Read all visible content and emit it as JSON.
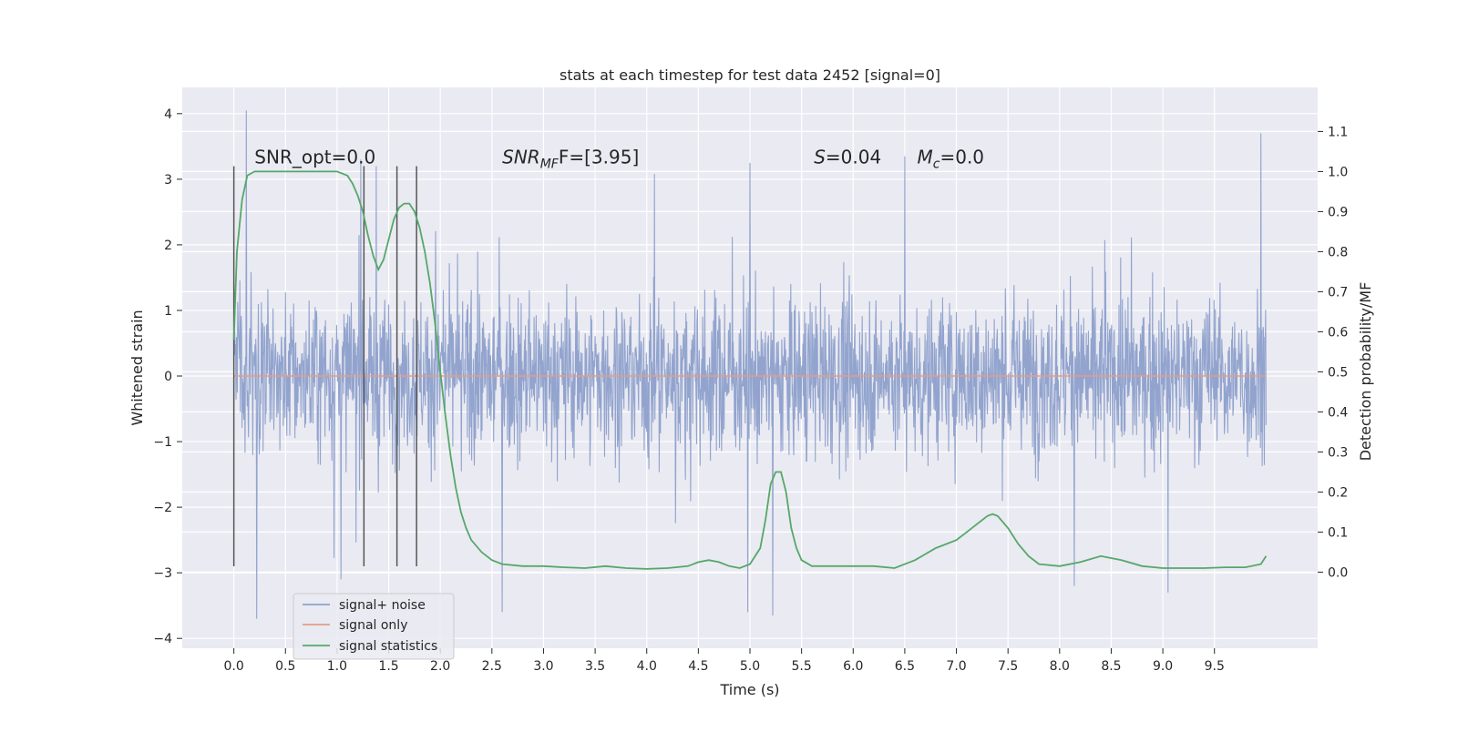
{
  "chart_data": {
    "type": "line",
    "title": "stats at each timestep for test data 2452 [signal=0]",
    "xlabel": "Time (s)",
    "ylabel": "Whitened strain",
    "y2label": "Detection probability/MF",
    "xlim": [
      -0.5,
      10.5
    ],
    "ylim": [
      -4.15,
      4.4
    ],
    "y2lim": [
      -0.19,
      1.21
    ],
    "x_ticks": [
      0.0,
      0.5,
      1.0,
      1.5,
      2.0,
      2.5,
      3.0,
      3.5,
      4.0,
      4.5,
      5.0,
      5.5,
      6.0,
      6.5,
      7.0,
      7.5,
      8.0,
      8.5,
      9.0,
      9.5
    ],
    "x_tick_labels": [
      "0.0",
      "0.5",
      "1.0",
      "1.5",
      "2.0",
      "2.5",
      "3.0",
      "3.5",
      "4.0",
      "4.5",
      "5.0",
      "5.5",
      "6.0",
      "6.5",
      "7.0",
      "7.5",
      "8.0",
      "8.5",
      "9.0",
      "9.5"
    ],
    "y_ticks": [
      -4,
      -3,
      -2,
      -1,
      0,
      1,
      2,
      3,
      4
    ],
    "y_tick_labels": [
      "−4",
      "−3",
      "−2",
      "−1",
      "0",
      "1",
      "2",
      "3",
      "4"
    ],
    "y2_ticks": [
      0.0,
      0.1,
      0.2,
      0.3,
      0.4,
      0.5,
      0.6,
      0.7,
      0.8,
      0.9,
      1.0,
      1.1
    ],
    "y2_tick_labels": [
      "0.0",
      "0.1",
      "0.2",
      "0.3",
      "0.4",
      "0.5",
      "0.6",
      "0.7",
      "0.8",
      "0.9",
      "1.0",
      "1.1"
    ],
    "grid": true,
    "legend_position": "lower-left",
    "colors": {
      "signal_noise": "#8da0cb",
      "signal_only": "#e29d85",
      "statistics": "#55a868",
      "vlines": "#555555",
      "plot_bg": "#eaeaf2",
      "grid": "#ffffff"
    },
    "series": [
      {
        "name": "signal+ noise",
        "axis": "left",
        "x_range": [
          0.0,
          10.0
        ],
        "band_typical": [
          -1.6,
          1.4
        ],
        "peaks": [
          {
            "x": 0.12,
            "y": 4.05
          },
          {
            "x": 1.23,
            "y": 3.3
          },
          {
            "x": 1.38,
            "y": 3.2
          },
          {
            "x": 5.0,
            "y": 3.25
          },
          {
            "x": 6.5,
            "y": 3.35
          },
          {
            "x": 9.95,
            "y": 3.7
          },
          {
            "x": 0.22,
            "y": -3.7
          },
          {
            "x": 2.6,
            "y": -3.6
          },
          {
            "x": 5.22,
            "y": -3.65
          },
          {
            "x": 4.98,
            "y": -3.6
          },
          {
            "x": 9.05,
            "y": -3.3
          }
        ]
      },
      {
        "name": "signal only",
        "axis": "left",
        "x": [
          0.0,
          10.0
        ],
        "y": [
          0.0,
          0.0
        ]
      },
      {
        "name": "signal statistics",
        "axis": "right",
        "x": [
          0.0,
          0.03,
          0.08,
          0.13,
          0.2,
          0.3,
          0.5,
          0.7,
          0.9,
          1.0,
          1.1,
          1.15,
          1.2,
          1.25,
          1.3,
          1.35,
          1.4,
          1.45,
          1.5,
          1.55,
          1.6,
          1.65,
          1.7,
          1.75,
          1.8,
          1.85,
          1.9,
          1.95,
          2.0,
          2.05,
          2.1,
          2.15,
          2.2,
          2.25,
          2.3,
          2.4,
          2.5,
          2.6,
          2.8,
          3.0,
          3.2,
          3.4,
          3.6,
          3.8,
          4.0,
          4.2,
          4.4,
          4.5,
          4.6,
          4.7,
          4.8,
          4.9,
          5.0,
          5.1,
          5.15,
          5.2,
          5.25,
          5.3,
          5.35,
          5.4,
          5.45,
          5.5,
          5.6,
          5.8,
          6.0,
          6.2,
          6.4,
          6.6,
          6.8,
          7.0,
          7.1,
          7.2,
          7.3,
          7.35,
          7.4,
          7.5,
          7.6,
          7.7,
          7.8,
          8.0,
          8.2,
          8.4,
          8.6,
          8.8,
          9.0,
          9.2,
          9.4,
          9.6,
          9.8,
          9.95,
          10.0
        ],
        "y": [
          0.58,
          0.8,
          0.93,
          0.99,
          1.0,
          1.0,
          1.0,
          1.0,
          1.0,
          1.0,
          0.99,
          0.97,
          0.94,
          0.9,
          0.84,
          0.79,
          0.755,
          0.78,
          0.83,
          0.88,
          0.91,
          0.92,
          0.92,
          0.9,
          0.86,
          0.8,
          0.72,
          0.62,
          0.5,
          0.39,
          0.29,
          0.21,
          0.15,
          0.11,
          0.08,
          0.05,
          0.03,
          0.02,
          0.015,
          0.015,
          0.012,
          0.01,
          0.015,
          0.01,
          0.008,
          0.01,
          0.015,
          0.025,
          0.03,
          0.025,
          0.015,
          0.01,
          0.02,
          0.06,
          0.13,
          0.22,
          0.25,
          0.25,
          0.2,
          0.11,
          0.06,
          0.03,
          0.015,
          0.015,
          0.015,
          0.015,
          0.01,
          0.03,
          0.06,
          0.08,
          0.1,
          0.12,
          0.14,
          0.145,
          0.14,
          0.11,
          0.07,
          0.04,
          0.02,
          0.015,
          0.025,
          0.04,
          0.03,
          0.015,
          0.01,
          0.01,
          0.01,
          0.012,
          0.012,
          0.02,
          0.04
        ]
      }
    ],
    "vertical_lines": {
      "x": [
        0.0,
        1.26,
        1.58,
        1.77
      ],
      "y_range": [
        -2.9,
        3.2
      ]
    },
    "annotations": [
      {
        "id": "snr-opt",
        "text": "SNR_opt=0.0",
        "x": 0.2,
        "y": 3.3
      },
      {
        "id": "snr-mf-base",
        "text": "SNR",
        "sub": "MF",
        "tail": "F=[3.95]",
        "x": 2.6,
        "y": 3.3
      },
      {
        "id": "s-stat",
        "main": "S",
        "tail": "=0.04",
        "x": 5.62,
        "y": 3.3
      },
      {
        "id": "mc",
        "main": "M",
        "sub": "c",
        "tail": "=0.0",
        "x": 6.62,
        "y": 3.3
      }
    ],
    "legend": [
      {
        "label": "signal+ noise",
        "series": 0
      },
      {
        "label": "signal only",
        "series": 1
      },
      {
        "label": "signal statistics",
        "series": 2
      }
    ]
  }
}
